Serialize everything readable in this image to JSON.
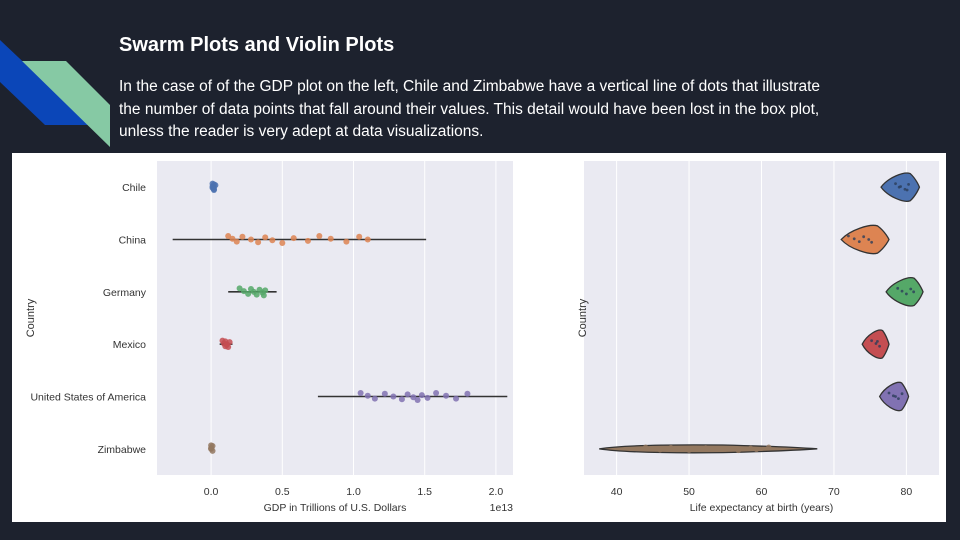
{
  "slide": {
    "title": "Swarm Plots and Violin Plots",
    "description": "In the case of of the GDP plot on the left, Chile and Zimbabwe have a vertical line of dots that illustrate the number of data points that fall around their values. This detail would have been lost in the box plot, unless the reader is very adept at data visualizations.",
    "accent_colors": [
      "#0b46b8",
      "#86c9a4"
    ]
  },
  "chart_data": [
    {
      "type": "scatter",
      "subtype": "strip-plot-with-range-lines",
      "ylabel": "Country",
      "xlabel": "GDP in Trillions of U.S. Dollars",
      "x_offset_label": "1e13",
      "xticks": [
        "0.0",
        "0.5",
        "1.0",
        "1.5",
        "2.0"
      ],
      "xlim": [
        -0.38,
        2.12
      ],
      "grid": true,
      "categories": [
        "Chile",
        "China",
        "Germany",
        "Mexico",
        "United States of America",
        "Zimbabwe"
      ],
      "colors": [
        "#4c72b0",
        "#dd8452",
        "#55a868",
        "#c44e52",
        "#8172b2",
        "#937860"
      ],
      "ranges": [
        [
          0,
          0.03
        ],
        [
          -0.27,
          1.51
        ],
        [
          0.12,
          0.46
        ],
        [
          0.06,
          0.15
        ],
        [
          0.75,
          2.08
        ],
        [
          0.0,
          0.01
        ]
      ],
      "points": [
        [
          0.01,
          0.01,
          0.02,
          0.02,
          0.02,
          0.02,
          0.03,
          0.01
        ],
        [
          0.12,
          0.15,
          0.18,
          0.22,
          0.28,
          0.33,
          0.38,
          0.43,
          0.5,
          0.58,
          0.68,
          0.76,
          0.84,
          0.95,
          1.04,
          1.1
        ],
        [
          0.2,
          0.23,
          0.26,
          0.28,
          0.3,
          0.32,
          0.34,
          0.36,
          0.37,
          0.38
        ],
        [
          0.08,
          0.09,
          0.1,
          0.1,
          0.11,
          0.12,
          0.13,
          0.11
        ],
        [
          1.05,
          1.1,
          1.15,
          1.22,
          1.28,
          1.34,
          1.38,
          1.42,
          1.45,
          1.48,
          1.52,
          1.58,
          1.65,
          1.72,
          1.8
        ],
        [
          0.0,
          0.0,
          0.01,
          0.01,
          0.0
        ]
      ]
    },
    {
      "type": "scatter",
      "subtype": "violin",
      "ylabel": "Country",
      "xlabel": "Life expectancy at birth (years)",
      "xticks": [
        "40",
        "50",
        "60",
        "70",
        "80"
      ],
      "xlim": [
        35.5,
        84.5
      ],
      "grid": true,
      "colors": [
        "#4c72b0",
        "#dd8452",
        "#55a868",
        "#c44e52",
        "#8172b2",
        "#937860"
      ],
      "ranges": [
        [
          76.5,
          81.8
        ],
        [
          71.0,
          77.6
        ],
        [
          77.2,
          82.3
        ],
        [
          73.9,
          77.6
        ],
        [
          76.3,
          80.3
        ],
        [
          37.6,
          67.7
        ]
      ],
      "points": [
        [
          78.5,
          79.2,
          79.8,
          80.3,
          79.0,
          80.1
        ],
        [
          72.0,
          72.8,
          73.5,
          74.1,
          74.8,
          75.2
        ],
        [
          78.8,
          79.4,
          80.0,
          80.6,
          81.0
        ],
        [
          75.2,
          75.8,
          76.3,
          76.0
        ],
        [
          77.6,
          78.2,
          78.9,
          79.4,
          78.5
        ],
        [
          44.0,
          45.0,
          46.0,
          47.5,
          48.0,
          50.0,
          52.3,
          55.0,
          56.8,
          58.5,
          59.3,
          61.0
        ]
      ]
    }
  ]
}
